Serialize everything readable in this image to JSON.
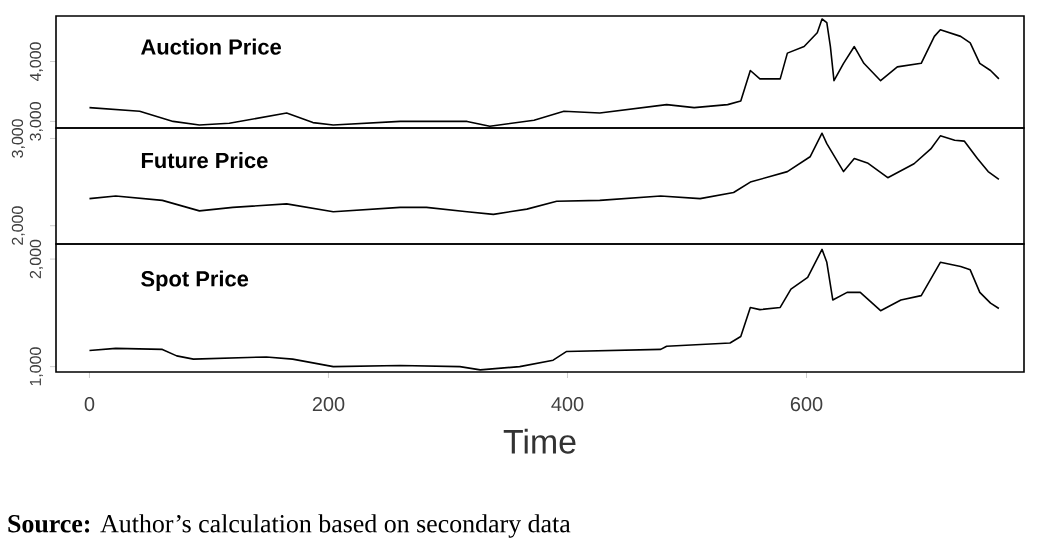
{
  "chart_data": [
    {
      "type": "line",
      "title": "Auction Price",
      "tick_labels": "y",
      "x": [
        0,
        42,
        70,
        92,
        117,
        165,
        187,
        204,
        260,
        316,
        335,
        372,
        397,
        427,
        483,
        506,
        534,
        545,
        553,
        561,
        578,
        584,
        598,
        609,
        613,
        617,
        620,
        623,
        631,
        640,
        648,
        662,
        676,
        696,
        707,
        712,
        729,
        737,
        745,
        754,
        761
      ],
      "values": [
        3230,
        3170,
        3000,
        2940,
        2970,
        3140,
        2980,
        2940,
        3000,
        3000,
        2920,
        3020,
        3170,
        3140,
        3280,
        3230,
        3280,
        3340,
        3850,
        3710,
        3710,
        4140,
        4250,
        4480,
        4710,
        4650,
        4250,
        3680,
        3970,
        4250,
        3970,
        3680,
        3910,
        3970,
        4420,
        4530,
        4420,
        4310,
        3970,
        3850,
        3710
      ],
      "color": "#000000",
      "xlim": [
        -28,
        782
      ],
      "ylim": [
        2890,
        4760
      ],
      "yticks": [
        {
          "value": 3000,
          "label": "3,000"
        },
        {
          "value": 4000,
          "label": "4,000"
        }
      ]
    },
    {
      "type": "line",
      "title": "Future Price",
      "tick_labels": "y",
      "x": [
        0,
        22,
        61,
        92,
        120,
        165,
        204,
        260,
        282,
        316,
        338,
        366,
        391,
        427,
        478,
        511,
        539,
        553,
        584,
        603,
        613,
        617,
        631,
        640,
        651,
        668,
        690,
        704,
        712,
        724,
        732,
        743,
        752,
        761
      ],
      "values": [
        2310,
        2340,
        2290,
        2170,
        2210,
        2250,
        2160,
        2210,
        2210,
        2160,
        2130,
        2190,
        2280,
        2290,
        2340,
        2310,
        2380,
        2500,
        2620,
        2790,
        3060,
        2940,
        2620,
        2770,
        2720,
        2550,
        2710,
        2880,
        3030,
        2980,
        2970,
        2770,
        2620,
        2530
      ],
      "color": "#000000",
      "xlim": [
        -28,
        782
      ],
      "ylim": [
        1790,
        3120
      ],
      "yticks": [
        {
          "value": 2000,
          "label": "2,000"
        },
        {
          "value": 3000,
          "label": "3,000"
        }
      ]
    },
    {
      "type": "line",
      "title": "Spot Price",
      "xlabel": "Time",
      "x": [
        0,
        22,
        61,
        73,
        87,
        148,
        170,
        204,
        260,
        310,
        327,
        360,
        388,
        399,
        478,
        483,
        536,
        545,
        553,
        561,
        578,
        587,
        601,
        613,
        617,
        622,
        634,
        645,
        662,
        679,
        696,
        712,
        729,
        737,
        745,
        754,
        761
      ],
      "values": [
        1150,
        1170,
        1160,
        1100,
        1070,
        1090,
        1070,
        1000,
        1010,
        1000,
        970,
        1000,
        1060,
        1140,
        1160,
        1190,
        1220,
        1280,
        1550,
        1530,
        1550,
        1720,
        1830,
        2090,
        1970,
        1620,
        1690,
        1690,
        1520,
        1620,
        1660,
        1970,
        1930,
        1900,
        1690,
        1590,
        1540
      ],
      "color": "#000000",
      "xlim": [
        -28,
        782
      ],
      "ylim": [
        950,
        2140
      ],
      "xticks": [
        0,
        200,
        400,
        600
      ],
      "yticks": [
        {
          "value": 1000,
          "label": "1,000"
        },
        {
          "value": 2000,
          "label": "2,000"
        }
      ],
      "annotations": [
        "**Source:** Author’s calculation based on secondary data"
      ]
    }
  ]
}
